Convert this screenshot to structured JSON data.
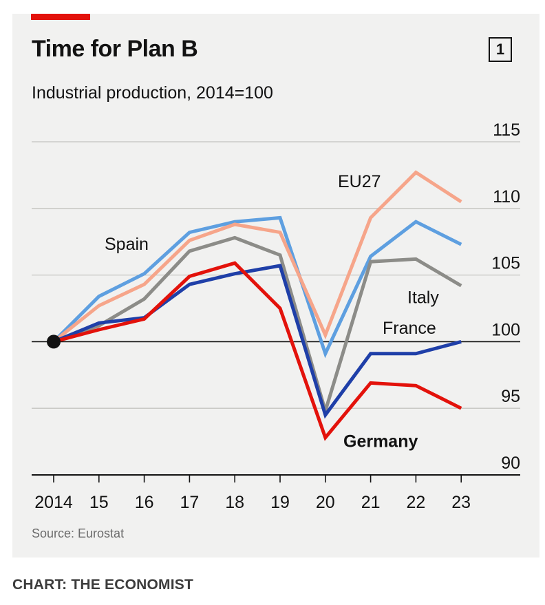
{
  "header": {
    "title": "Time for Plan B",
    "chart_number": "1"
  },
  "subtitle": "Industrial production, 2014=100",
  "source": "Source: Eurostat",
  "credit": "CHART: THE ECONOMIST",
  "chart_data": {
    "type": "line",
    "title": "Time for Plan B",
    "subtitle": "Industrial production, 2014=100",
    "xlabel": "",
    "ylabel": "Industrial production, 2014=100",
    "x": [
      2014,
      2015,
      2016,
      2017,
      2018,
      2019,
      2020,
      2021,
      2022,
      2023
    ],
    "x_tick_labels": [
      "2014",
      "15",
      "16",
      "17",
      "18",
      "19",
      "20",
      "21",
      "22",
      "23"
    ],
    "ylim": [
      90,
      115
    ],
    "y_ticks": [
      90,
      95,
      100,
      105,
      110,
      115
    ],
    "y_tick_labels": [
      "90",
      "95",
      "100",
      "105",
      "110",
      "115"
    ],
    "grid": true,
    "baseline": 100,
    "series": [
      {
        "name": "Spain",
        "color": "#5e9fe0",
        "values": [
          100,
          103.4,
          105.1,
          108.2,
          109.0,
          109.3,
          99.1,
          106.4,
          109.0,
          107.3
        ]
      },
      {
        "name": "EU27",
        "color": "#f6a58a",
        "values": [
          100,
          102.7,
          104.3,
          107.6,
          108.8,
          108.2,
          100.5,
          109.3,
          112.7,
          110.5
        ]
      },
      {
        "name": "Italy",
        "color": "#8c8c88",
        "values": [
          100,
          101.2,
          103.2,
          106.8,
          107.8,
          106.5,
          94.8,
          106.0,
          106.2,
          104.2
        ]
      },
      {
        "name": "France",
        "color": "#1f3fa8",
        "values": [
          100,
          101.4,
          101.8,
          104.3,
          105.1,
          105.7,
          94.5,
          99.1,
          99.1,
          100.0
        ]
      },
      {
        "name": "Germany",
        "color": "#e3120b",
        "values": [
          100,
          100.9,
          101.7,
          104.9,
          105.9,
          102.5,
          92.8,
          96.9,
          96.7,
          95.0
        ]
      }
    ],
    "labels": {
      "Spain": "Spain",
      "EU27": "EU27",
      "Italy": "Italy",
      "France": "France",
      "Germany": "Germany"
    }
  }
}
